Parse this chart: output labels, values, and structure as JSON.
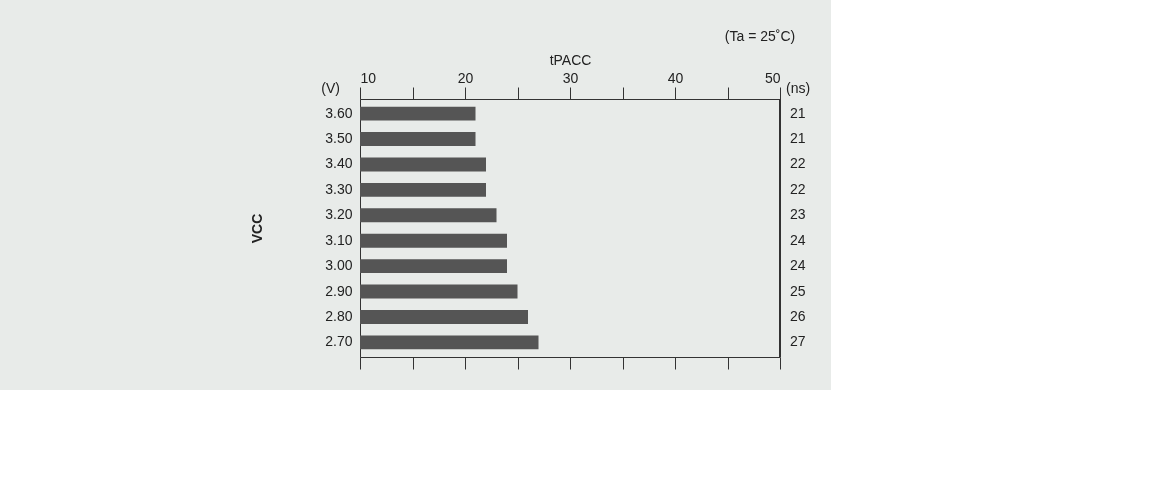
{
  "chart_data": {
    "type": "bar",
    "orientation": "horizontal",
    "xlabel": "tPACC",
    "ylabel": "VCC",
    "categories": [
      "3.60",
      "3.50",
      "3.40",
      "3.30",
      "3.20",
      "3.10",
      "3.00",
      "2.90",
      "2.80",
      "2.70"
    ],
    "values": [
      21,
      21,
      22,
      22,
      23,
      24,
      24,
      25,
      26,
      27
    ],
    "color": "#555555",
    "data_labels": true,
    "xlim": [
      10,
      50
    ],
    "xticks": [
      10,
      {
        "value": 15,
        "label": null
      },
      20,
      {
        "value": 25,
        "label": null
      },
      30,
      {
        "value": 35,
        "label": null
      },
      40,
      {
        "value": 45,
        "label": null
      },
      50
    ],
    "annotations": [
      "(V)",
      "(ns)",
      "(Ta = 25˚C)"
    ],
    "grid": false
  }
}
